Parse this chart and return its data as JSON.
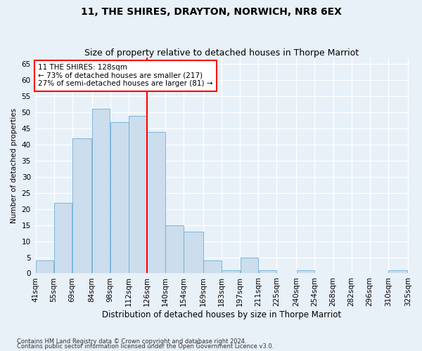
{
  "title": "11, THE SHIRES, DRAYTON, NORWICH, NR8 6EX",
  "subtitle": "Size of property relative to detached houses in Thorpe Marriot",
  "xlabel": "Distribution of detached houses by size in Thorpe Marriot",
  "ylabel": "Number of detached properties",
  "footnote1": "Contains HM Land Registry data © Crown copyright and database right 2024.",
  "footnote2": "Contains public sector information licensed under the Open Government Licence v3.0.",
  "annotation_line1": "11 THE SHIRES: 128sqm",
  "annotation_line2": "← 73% of detached houses are smaller (217)",
  "annotation_line3": "27% of semi-detached houses are larger (81) →",
  "bar_color": "#ccdded",
  "bar_edge_color": "#6aaed6",
  "vline_color": "red",
  "vline_x": 126,
  "categories": [
    "41sqm",
    "55sqm",
    "69sqm",
    "84sqm",
    "98sqm",
    "112sqm",
    "126sqm",
    "140sqm",
    "154sqm",
    "169sqm",
    "183sqm",
    "197sqm",
    "211sqm",
    "225sqm",
    "240sqm",
    "254sqm",
    "268sqm",
    "282sqm",
    "296sqm",
    "310sqm",
    "325sqm"
  ],
  "bin_edges": [
    41,
    55,
    69,
    84,
    98,
    112,
    126,
    140,
    154,
    169,
    183,
    197,
    211,
    225,
    240,
    254,
    268,
    282,
    296,
    310,
    325
  ],
  "values": [
    4,
    22,
    42,
    51,
    47,
    49,
    44,
    15,
    13,
    4,
    1,
    5,
    1,
    0,
    1,
    0,
    0,
    0,
    0,
    1,
    0
  ],
  "ylim": [
    0,
    67
  ],
  "yticks": [
    0,
    5,
    10,
    15,
    20,
    25,
    30,
    35,
    40,
    45,
    50,
    55,
    60,
    65
  ],
  "background_color": "#e8f0f8",
  "grid_color": "#ffffff",
  "title_fontsize": 10,
  "subtitle_fontsize": 9
}
